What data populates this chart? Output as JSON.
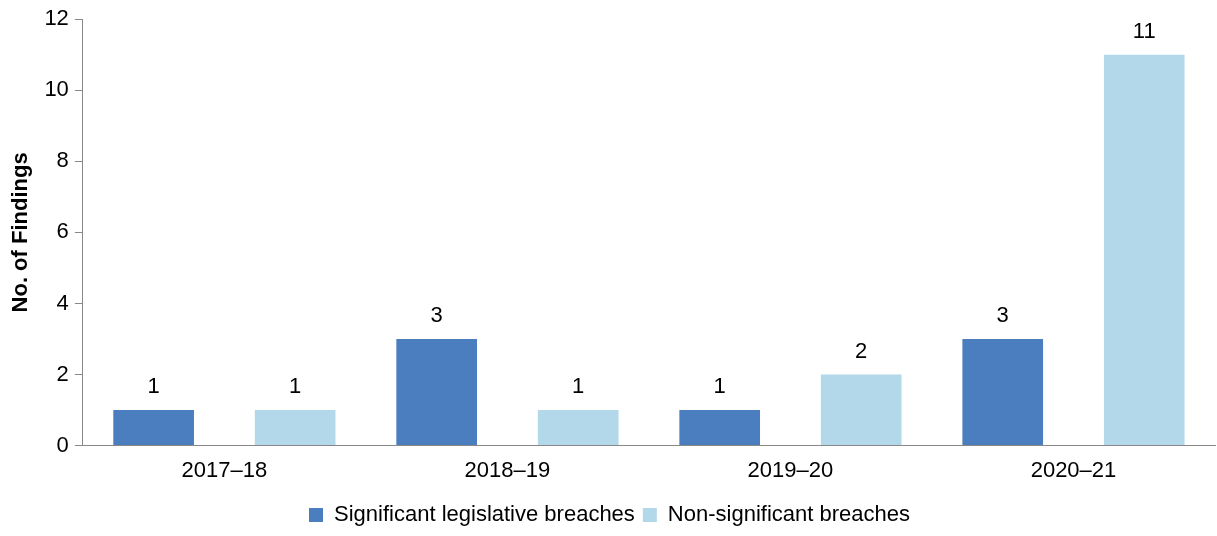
{
  "chart_data": {
    "type": "bar",
    "ylabel": "No. of Findings",
    "categories": [
      "2017–18",
      "2018–19",
      "2019–20",
      "2020–21"
    ],
    "series": [
      {
        "name": "Significant legislative breaches",
        "color": "#4a7ebf",
        "values": [
          1,
          3,
          1,
          3
        ]
      },
      {
        "name": "Non-significant breaches",
        "color": "#b3d8ea",
        "values": [
          1,
          1,
          2,
          11
        ]
      }
    ],
    "ylim": [
      0,
      12
    ],
    "yticks": [
      0,
      2,
      4,
      6,
      8,
      10,
      12
    ],
    "grid": false,
    "legend": "bottom",
    "data_labels": true
  }
}
